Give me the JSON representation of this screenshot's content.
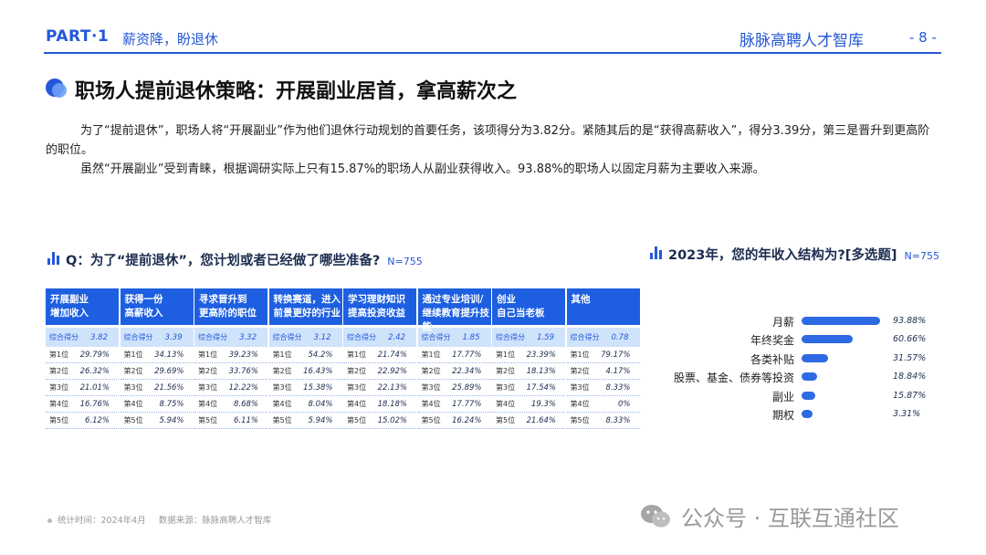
{
  "header": {
    "part": "PART·1",
    "section": "薪资降，盼退休",
    "brand": "脉脉高聘人才智库",
    "page": "- 8 -"
  },
  "title": "职场人提前退休策略：开展副业居首，拿高薪次之",
  "paragraphs": [
    "为了“提前退休”，职场人将“开展副业”作为他们退休行动规划的首要任务，该项得分为3.82分。紧随其后的是“获得高薪收入”，得分3.39分，第三是晋升到更高阶的职位。",
    "虽然“开展副业”受到青睐，根据调研实际上只有15.87%的职场人从副业获得收入。93.88%的职场人以固定月薪为主要收入来源。"
  ],
  "left_section": {
    "title": "Q：为了“提前退休”，您计划或者已经做了哪些准备?",
    "n": "N=755"
  },
  "right_section": {
    "title": "2023年，您的年收入结构为?[多选题]",
    "n": "N=755"
  },
  "footer": {
    "time": "统计时间：2024年4月",
    "source": "数据来源：脉脉高聘人才智库"
  },
  "watermark": "公众号 · 互联互通社区",
  "colors": {
    "primary": "#2458d8",
    "header_fill": "#1d5fe0",
    "score_fill": "#cfe3fb",
    "bar": "#2d6ae3",
    "track": "#dde6f5"
  },
  "chart_data": [
    {
      "type": "table",
      "score_label": "综合得分",
      "rank_labels": [
        "第1位",
        "第2位",
        "第3位",
        "第4位",
        "第5位"
      ],
      "columns": [
        {
          "header": [
            "开展副业",
            "增加收入"
          ],
          "score": "3.82",
          "ranks": [
            "29.79%",
            "26.32%",
            "21.01%",
            "16.76%",
            "6.12%"
          ]
        },
        {
          "header": [
            "获得一份",
            "高薪收入"
          ],
          "score": "3.39",
          "ranks": [
            "34.13%",
            "29.69%",
            "21.56%",
            "8.75%",
            "5.94%"
          ]
        },
        {
          "header": [
            "寻求晋升到",
            "更高阶的职位"
          ],
          "score": "3.32",
          "ranks": [
            "39.23%",
            "33.76%",
            "12.22%",
            "8.68%",
            "6.11%"
          ]
        },
        {
          "header": [
            "转换赛道，进入",
            "前景更好的行业"
          ],
          "score": "3.12",
          "ranks": [
            "54.2%",
            "16.43%",
            "15.38%",
            "8.04%",
            "5.94%"
          ]
        },
        {
          "header": [
            "学习理财知识",
            "提高投资收益"
          ],
          "score": "2.42",
          "ranks": [
            "21.74%",
            "22.92%",
            "22.13%",
            "18.18%",
            "15.02%"
          ]
        },
        {
          "header": [
            "通过专业培训/",
            "继续教育提升技能"
          ],
          "score": "1.85",
          "ranks": [
            "17.77%",
            "22.34%",
            "25.89%",
            "17.77%",
            "16.24%"
          ]
        },
        {
          "header": [
            "创业",
            "自己当老板"
          ],
          "score": "1.59",
          "ranks": [
            "23.39%",
            "18.13%",
            "17.54%",
            "19.3%",
            "21.64%"
          ]
        },
        {
          "header": [
            "其他",
            ""
          ],
          "score": "0.78",
          "ranks": [
            "79.17%",
            "4.17%",
            "8.33%",
            "0%",
            "8.33%"
          ]
        }
      ]
    },
    {
      "type": "bar",
      "orientation": "horizontal",
      "categories": [
        "月薪",
        "年终奖金",
        "各类补贴",
        "股票、基金、债券等投资",
        "副业",
        "期权"
      ],
      "values": [
        93.88,
        60.66,
        31.57,
        18.84,
        15.87,
        3.31
      ],
      "value_labels": [
        "93.88%",
        "60.66%",
        "31.57%",
        "18.84%",
        "15.87%",
        "3.31%"
      ],
      "xlim": [
        0,
        100
      ]
    }
  ]
}
